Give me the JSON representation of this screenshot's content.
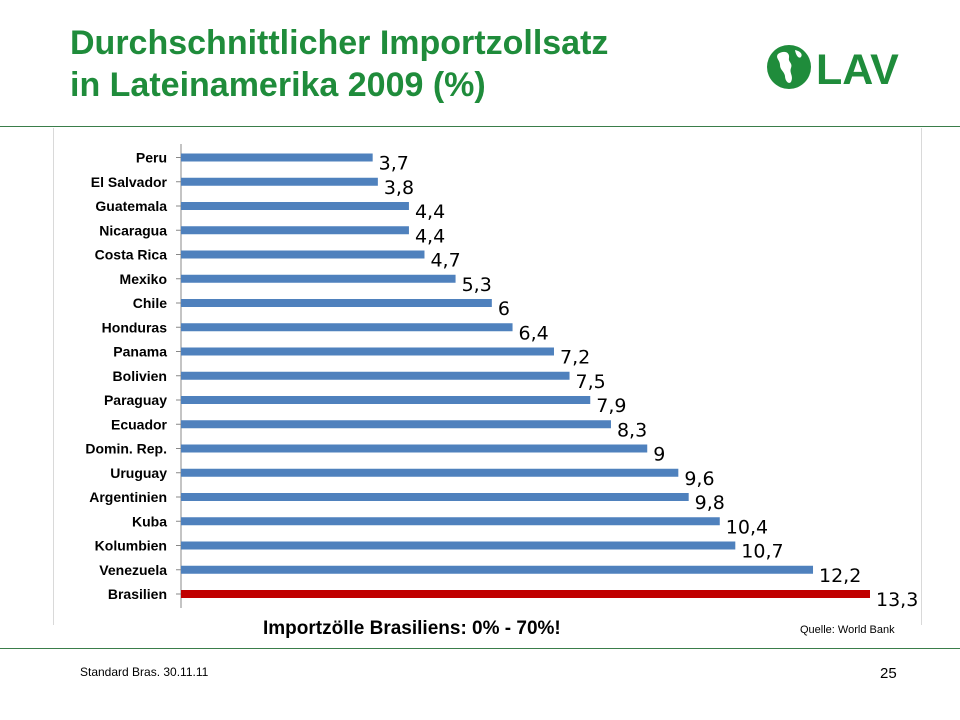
{
  "header": {
    "title_line1": "Durchschnittlicher Importzollsatz",
    "title_line2": "in Lateinamerika 2009 (%)",
    "logo_text": "LAV"
  },
  "chart_data": {
    "type": "bar",
    "orientation": "horizontal",
    "categories": [
      "Peru",
      "El Salvador",
      "Guatemala",
      "Nicaragua",
      "Costa Rica",
      "Mexiko",
      "Chile",
      "Honduras",
      "Panama",
      "Bolivien",
      "Paraguay",
      "Ecuador",
      "Domin. Rep.",
      "Uruguay",
      "Argentinien",
      "Kuba",
      "Kolumbien",
      "Venezuela",
      "Brasilien"
    ],
    "values": [
      3.7,
      3.8,
      4.4,
      4.4,
      4.7,
      5.3,
      6,
      6.4,
      7.2,
      7.5,
      7.9,
      8.3,
      9,
      9.6,
      9.8,
      10.4,
      10.7,
      12.2,
      13.3
    ],
    "value_labels": [
      "3,7",
      "3,8",
      "4,4",
      "4,4",
      "4,7",
      "5,3",
      "6",
      "6,4",
      "7,2",
      "7,5",
      "7,9",
      "8,3",
      "9",
      "9,6",
      "9,8",
      "10,4",
      "10,7",
      "12,2",
      "13,3"
    ],
    "highlight_category": "Brasilien",
    "colors": {
      "bar": "#4f81bd",
      "highlight": "#c00000"
    },
    "xlim": [
      0,
      13.3
    ],
    "grid": false,
    "title": "",
    "xlabel": "",
    "ylabel": ""
  },
  "note": "Importzölle Brasiliens: 0% - 70%!",
  "source": "Quelle:  World Bank",
  "footer": {
    "left_text": "Standard Bras. 30.11.11",
    "page_number": "25"
  },
  "colors": {
    "title": "#1f8c3b",
    "rule": "#3a7d4a"
  }
}
